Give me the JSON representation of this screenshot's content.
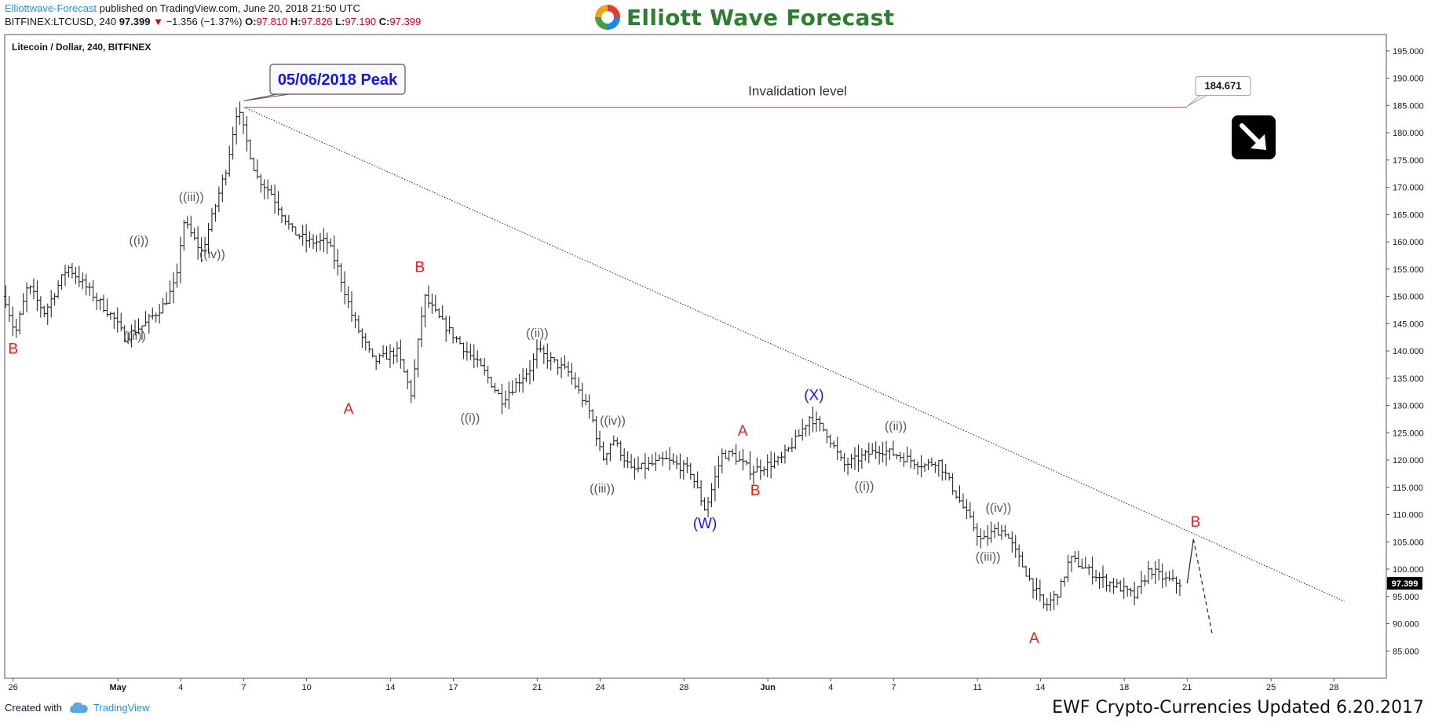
{
  "header": {
    "author": "Elliottwave-Forecast",
    "published": "published on TradingView.com, June 20, 2018 21:50 UTC",
    "symbol": "BITFINEX:LTCUSD, 240",
    "last": "97.399",
    "change": "−1.356 (−1.37%)",
    "o_label": "O:",
    "o_value": "97.810",
    "h_label": "H:",
    "h_value": "97.826",
    "l_label": "L:",
    "l_value": "97.190",
    "c_label": "C:",
    "c_value": "97.399"
  },
  "logo": {
    "text": "Elliott Wave Forecast"
  },
  "footer": {
    "created_with": "Created with",
    "tradingview": "TradingView",
    "caption": "EWF Crypto-Currencies Updated 6.20.2017"
  },
  "chart_data": {
    "type": "ohlc",
    "title": "Litecoin / Dollar, 240, BITFINEX",
    "ylim": [
      80,
      198
    ],
    "y_ticks": [
      "195.000",
      "190.000",
      "185.000",
      "180.000",
      "175.000",
      "170.000",
      "165.000",
      "160.000",
      "155.000",
      "150.000",
      "145.000",
      "140.000",
      "135.000",
      "130.000",
      "125.000",
      "120.000",
      "115.000",
      "110.000",
      "105.000",
      "100.000",
      "95.000",
      "90.000",
      "85.000"
    ],
    "x_ticks": [
      "26",
      "May",
      "4",
      "7",
      "10",
      "14",
      "17",
      "21",
      "24",
      "28",
      "Jun",
      "4",
      "7",
      "11",
      "14",
      "18",
      "21",
      "25",
      "28"
    ],
    "x_tick_days": [
      -5,
      0,
      3,
      6,
      9,
      13,
      16,
      20,
      23,
      27,
      31,
      34,
      37,
      41,
      44,
      48,
      51,
      55,
      58
    ],
    "x_range_days": [
      -5.4,
      60.5
    ],
    "last_price_label": "97.399",
    "path_anchor_days": [
      -5.4,
      -4.9,
      -4.3,
      -3.5,
      -2.4,
      -0.2,
      0.3,
      1.3,
      2.2,
      2.8,
      3.1,
      4.0,
      5.2,
      5.7,
      6.6,
      7.3,
      8.3,
      9.1,
      10.0,
      10.5,
      11.2,
      12.2,
      13.3,
      14.0,
      14.6,
      15.3,
      17.5,
      18.3,
      19.7,
      20.0,
      21.5,
      22.6,
      23.1,
      23.6,
      24.5,
      26.1,
      27.3,
      28.0,
      28.2,
      28.8,
      29.3,
      30.2,
      31.6,
      32.4,
      33.0,
      33.8,
      34.6,
      36.3,
      37.1,
      38.5,
      39.1,
      40.5,
      41.2,
      41.8,
      42.3,
      43.5,
      44.2,
      44.9,
      45.4,
      47.0,
      47.6,
      48.5,
      49.2,
      50.0,
      50.7
    ],
    "path_anchor_prices": [
      150,
      143,
      152,
      147,
      155.5,
      146,
      142.5,
      145,
      148.5,
      153,
      164,
      158,
      174,
      184.7,
      172,
      169,
      162,
      160,
      160,
      155,
      146,
      138,
      140,
      132,
      150,
      146,
      136,
      131,
      137,
      140,
      136,
      128,
      120,
      124,
      118,
      120,
      118,
      111,
      113,
      121,
      121,
      118,
      120,
      124,
      128,
      125,
      119,
      122,
      121,
      119,
      120,
      110,
      105,
      107,
      107,
      98,
      93,
      96,
      102,
      98,
      97,
      95,
      100,
      98,
      97.4
    ],
    "trendline": {
      "from_day": 6.0,
      "from_price": 184.7,
      "to_day": 58.5,
      "to_price": 94.1
    },
    "invalidation": {
      "price": 184.671,
      "label": "Invalidation level",
      "value_label": "184.671"
    },
    "peak_callout": "05/06/2018 Peak",
    "projection": [
      {
        "day": 51.0,
        "price": 97.4
      },
      {
        "day": 51.3,
        "price": 105.5
      },
      {
        "day": 52.2,
        "price": 88.0
      }
    ],
    "wave_labels": [
      {
        "text": "B",
        "day": -5.0,
        "price": 139.5,
        "color": "red"
      },
      {
        "text": "((i))",
        "day": 1.0,
        "price": 159.5,
        "color": "gray"
      },
      {
        "text": "((ii))",
        "day": 0.8,
        "price": 142.0,
        "color": "gray"
      },
      {
        "text": "((iii))",
        "day": 3.5,
        "price": 167.5,
        "color": "gray"
      },
      {
        "text": "((iv))",
        "day": 4.5,
        "price": 157.0,
        "color": "gray"
      },
      {
        "text": "A",
        "day": 11.0,
        "price": 128.5,
        "color": "red"
      },
      {
        "text": "B",
        "day": 14.4,
        "price": 154.5,
        "color": "red"
      },
      {
        "text": "((i))",
        "day": 16.8,
        "price": 127.0,
        "color": "gray"
      },
      {
        "text": "((ii))",
        "day": 20.0,
        "price": 142.5,
        "color": "gray"
      },
      {
        "text": "((iii))",
        "day": 23.1,
        "price": 114.0,
        "color": "gray"
      },
      {
        "text": "((iv))",
        "day": 23.6,
        "price": 126.5,
        "color": "gray"
      },
      {
        "text": "(W)",
        "day": 28.0,
        "price": 107.5,
        "color": "blue"
      },
      {
        "text": "A",
        "day": 29.8,
        "price": 124.5,
        "color": "red"
      },
      {
        "text": "B",
        "day": 30.4,
        "price": 113.5,
        "color": "red"
      },
      {
        "text": "(X)",
        "day": 33.2,
        "price": 131.0,
        "color": "blue"
      },
      {
        "text": "((ii))",
        "day": 37.1,
        "price": 125.5,
        "color": "gray"
      },
      {
        "text": "((i))",
        "day": 35.6,
        "price": 114.5,
        "color": "gray"
      },
      {
        "text": "((iv))",
        "day": 42.0,
        "price": 110.5,
        "color": "gray"
      },
      {
        "text": "((iii))",
        "day": 41.5,
        "price": 101.5,
        "color": "gray"
      },
      {
        "text": "A",
        "day": 43.7,
        "price": 86.5,
        "color": "red"
      },
      {
        "text": "B",
        "day": 51.4,
        "price": 107.8,
        "color": "red"
      }
    ],
    "colors": {
      "bar": "#131722",
      "red": "#e0201f",
      "blue": "#1515e8",
      "gray": "#55595f",
      "invalidation": "#ef5350",
      "grid": "none"
    }
  }
}
